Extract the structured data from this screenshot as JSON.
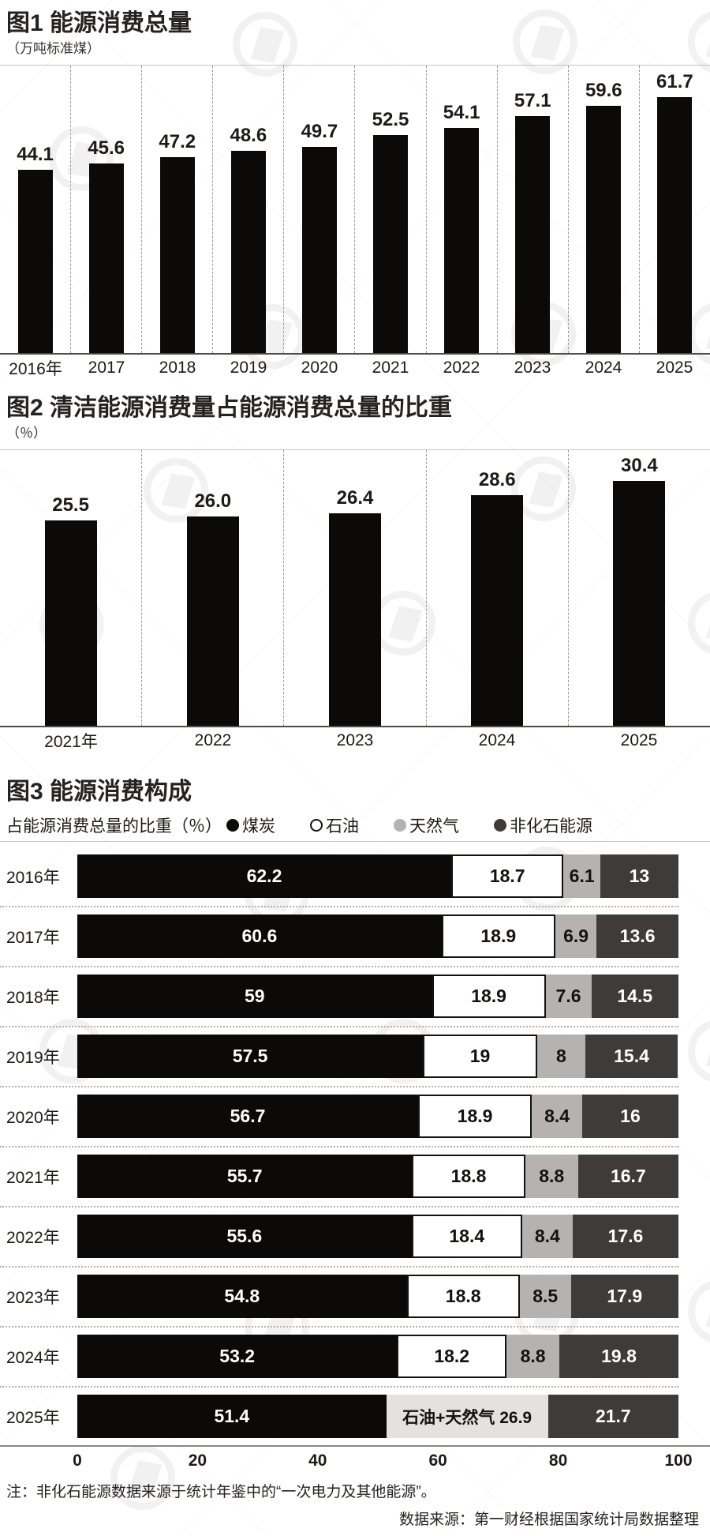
{
  "chart_data": [
    {
      "type": "bar",
      "title": "图1 能源消费总量",
      "unit": "（万吨标准煤）",
      "categories": [
        "2016年",
        "2017",
        "2018",
        "2019",
        "2020",
        "2021",
        "2022",
        "2023",
        "2024",
        "2025"
      ],
      "values": [
        44.1,
        45.6,
        47.2,
        48.6,
        49.7,
        52.5,
        54.1,
        57.1,
        59.6,
        61.7
      ],
      "labels": [
        "44.1",
        "45.6",
        "47.2",
        "48.6",
        "49.7",
        "52.5",
        "54.1",
        "57.1",
        "59.6",
        "61.7"
      ],
      "ylim": [
        0,
        70
      ],
      "grid": "dashed-vertical",
      "bar_color": "#0c0a08"
    },
    {
      "type": "bar",
      "title": "图2 清洁能源消费量占能源消费总量的比重",
      "unit": "（％）",
      "categories": [
        "2021年",
        "2022",
        "2023",
        "2024",
        "2025"
      ],
      "values": [
        25.5,
        26.0,
        26.4,
        28.6,
        30.4
      ],
      "labels": [
        "25.5",
        "26.0",
        "26.4",
        "28.6",
        "30.4"
      ],
      "ylim": [
        0,
        35
      ],
      "grid": "dashed-vertical",
      "bar_color": "#0c0a08"
    },
    {
      "type": "bar",
      "subtype": "horizontal-stacked",
      "title": "图3 能源消费构成",
      "legend_label": "占能源消费总量的比重（％）",
      "legend": [
        {
          "key": "coal",
          "name": "煤炭"
        },
        {
          "key": "oil",
          "name": "石油"
        },
        {
          "key": "gas",
          "name": "天然气"
        },
        {
          "key": "nonfossil",
          "name": "非化石能源"
        }
      ],
      "colors": {
        "coal": "#0c0a08",
        "oil": "#ffffff",
        "gas": "#b5b2af",
        "nonfossil": "#3e3b38",
        "oilgas": "#e4e2e0"
      },
      "rows": [
        {
          "year": "2016年",
          "segments": [
            {
              "type": "coal",
              "value": 62.2,
              "label": "62.2"
            },
            {
              "type": "oil",
              "value": 18.7,
              "label": "18.7"
            },
            {
              "type": "gas",
              "value": 6.1,
              "label": "6.1"
            },
            {
              "type": "nonfossil",
              "value": 13,
              "label": "13"
            }
          ]
        },
        {
          "year": "2017年",
          "segments": [
            {
              "type": "coal",
              "value": 60.6,
              "label": "60.6"
            },
            {
              "type": "oil",
              "value": 18.9,
              "label": "18.9"
            },
            {
              "type": "gas",
              "value": 6.9,
              "label": "6.9"
            },
            {
              "type": "nonfossil",
              "value": 13.6,
              "label": "13.6"
            }
          ]
        },
        {
          "year": "2018年",
          "segments": [
            {
              "type": "coal",
              "value": 59,
              "label": "59"
            },
            {
              "type": "oil",
              "value": 18.9,
              "label": "18.9"
            },
            {
              "type": "gas",
              "value": 7.6,
              "label": "7.6"
            },
            {
              "type": "nonfossil",
              "value": 14.5,
              "label": "14.5"
            }
          ]
        },
        {
          "year": "2019年",
          "segments": [
            {
              "type": "coal",
              "value": 57.5,
              "label": "57.5"
            },
            {
              "type": "oil",
              "value": 19,
              "label": "19"
            },
            {
              "type": "gas",
              "value": 8,
              "label": "8"
            },
            {
              "type": "nonfossil",
              "value": 15.4,
              "label": "15.4"
            }
          ]
        },
        {
          "year": "2020年",
          "segments": [
            {
              "type": "coal",
              "value": 56.7,
              "label": "56.7"
            },
            {
              "type": "oil",
              "value": 18.9,
              "label": "18.9"
            },
            {
              "type": "gas",
              "value": 8.4,
              "label": "8.4"
            },
            {
              "type": "nonfossil",
              "value": 16,
              "label": "16"
            }
          ]
        },
        {
          "year": "2021年",
          "segments": [
            {
              "type": "coal",
              "value": 55.7,
              "label": "55.7"
            },
            {
              "type": "oil",
              "value": 18.8,
              "label": "18.8"
            },
            {
              "type": "gas",
              "value": 8.8,
              "label": "8.8"
            },
            {
              "type": "nonfossil",
              "value": 16.7,
              "label": "16.7"
            }
          ]
        },
        {
          "year": "2022年",
          "segments": [
            {
              "type": "coal",
              "value": 55.6,
              "label": "55.6"
            },
            {
              "type": "oil",
              "value": 18.4,
              "label": "18.4"
            },
            {
              "type": "gas",
              "value": 8.4,
              "label": "8.4"
            },
            {
              "type": "nonfossil",
              "value": 17.6,
              "label": "17.6"
            }
          ]
        },
        {
          "year": "2023年",
          "segments": [
            {
              "type": "coal",
              "value": 54.8,
              "label": "54.8"
            },
            {
              "type": "oil",
              "value": 18.8,
              "label": "18.8"
            },
            {
              "type": "gas",
              "value": 8.5,
              "label": "8.5"
            },
            {
              "type": "nonfossil",
              "value": 17.9,
              "label": "17.9"
            }
          ]
        },
        {
          "year": "2024年",
          "segments": [
            {
              "type": "coal",
              "value": 53.2,
              "label": "53.2"
            },
            {
              "type": "oil",
              "value": 18.2,
              "label": "18.2"
            },
            {
              "type": "gas",
              "value": 8.8,
              "label": "8.8"
            },
            {
              "type": "nonfossil",
              "value": 19.8,
              "label": "19.8"
            }
          ]
        },
        {
          "year": "2025年",
          "segments": [
            {
              "type": "coal",
              "value": 51.4,
              "label": "51.4"
            },
            {
              "type": "oilgas",
              "value": 26.9,
              "label": "石油+天然气 26.9"
            },
            {
              "type": "nonfossil",
              "value": 21.7,
              "label": "21.7"
            }
          ]
        }
      ],
      "x_ticks": [
        0,
        20,
        40,
        60,
        80,
        100
      ],
      "xlim": [
        0,
        100
      ]
    }
  ],
  "note": "注：非化石能源数据来源于统计年鉴中的“一次电力及其他能源”。",
  "source": "数据来源：第一财经根据国家统计局数据整理"
}
